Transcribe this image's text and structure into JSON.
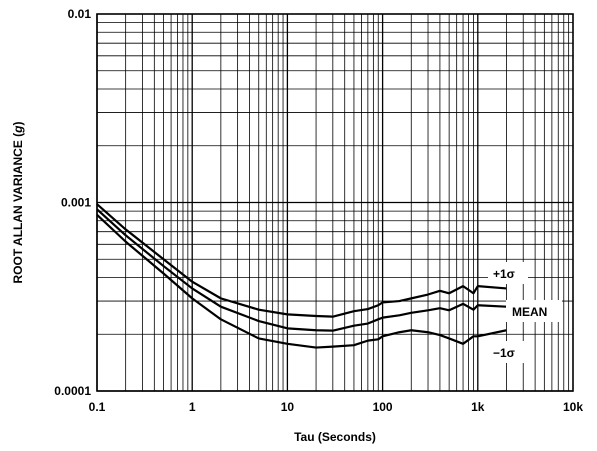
{
  "chart_data": {
    "type": "line",
    "xlabel": "Tau (Seconds)",
    "ylabel": "ROOT ALLAN VARIANCE (g)",
    "ylabel_main": "ROOT ALLAN VARIANCE (",
    "ylabel_unit": "g",
    "ylabel_close": ")",
    "x_scale": "log",
    "y_scale": "log",
    "xlim": [
      0.1,
      10000
    ],
    "ylim": [
      0.0001,
      0.01
    ],
    "grid": true,
    "x_ticks": [
      {
        "value": 0.1,
        "label": "0.1"
      },
      {
        "value": 1,
        "label": "1"
      },
      {
        "value": 10,
        "label": "10"
      },
      {
        "value": 100,
        "label": "100"
      },
      {
        "value": 1000,
        "label": "1k"
      },
      {
        "value": 10000,
        "label": "10k"
      }
    ],
    "y_ticks": [
      {
        "value": 0.0001,
        "label": "0.0001"
      },
      {
        "value": 0.001,
        "label": "0.001"
      },
      {
        "value": 0.01,
        "label": "0.01"
      }
    ],
    "series": [
      {
        "name": "+1σ",
        "x": [
          0.1,
          0.2,
          0.5,
          1,
          2,
          5,
          10,
          20,
          30,
          50,
          70,
          90,
          100,
          150,
          200,
          300,
          400,
          500,
          700,
          900,
          1000,
          2000
        ],
        "y": [
          0.00098,
          0.00072,
          0.0005,
          0.00038,
          0.00031,
          0.00027,
          0.000255,
          0.00025,
          0.000248,
          0.000265,
          0.000272,
          0.000285,
          0.000295,
          0.0003,
          0.00031,
          0.000325,
          0.00034,
          0.00033,
          0.00036,
          0.00033,
          0.00036,
          0.00035
        ]
      },
      {
        "name": "MEAN",
        "x": [
          0.1,
          0.2,
          0.5,
          1,
          2,
          5,
          10,
          20,
          30,
          50,
          70,
          90,
          100,
          150,
          200,
          300,
          400,
          500,
          700,
          900,
          1000,
          2000
        ],
        "y": [
          0.00092,
          0.00067,
          0.00046,
          0.00035,
          0.00028,
          0.000235,
          0.000215,
          0.00021,
          0.000209,
          0.000222,
          0.000228,
          0.00024,
          0.000245,
          0.000252,
          0.00026,
          0.000268,
          0.000275,
          0.000268,
          0.00029,
          0.00027,
          0.000285,
          0.00028
        ]
      },
      {
        "name": "−1σ",
        "x": [
          0.1,
          0.2,
          0.5,
          1,
          2,
          5,
          10,
          20,
          30,
          50,
          70,
          90,
          100,
          150,
          200,
          300,
          400,
          500,
          700,
          900,
          1000,
          2000
        ],
        "y": [
          0.00086,
          0.00062,
          0.00042,
          0.00031,
          0.00024,
          0.00019,
          0.000178,
          0.00017,
          0.000172,
          0.000175,
          0.000185,
          0.000188,
          0.000195,
          0.000205,
          0.00021,
          0.000205,
          0.000198,
          0.00019,
          0.000178,
          0.000195,
          0.000195,
          0.00021
        ]
      }
    ]
  }
}
